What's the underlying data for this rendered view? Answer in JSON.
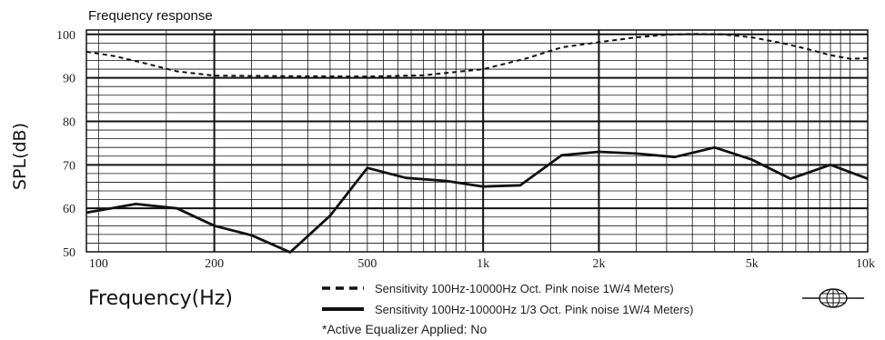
{
  "chart_data": {
    "type": "line",
    "title": "Frequency response",
    "xlabel": "Frequency(Hz)",
    "ylabel": "SPL(dB)",
    "xscale": "log",
    "xlim": [
      93,
      10000
    ],
    "ylim": [
      50,
      101
    ],
    "x_ticks": [
      {
        "value": 100,
        "label": "100"
      },
      {
        "value": 200,
        "label": "200"
      },
      {
        "value": 500,
        "label": "500"
      },
      {
        "value": 1000,
        "label": "1k"
      },
      {
        "value": 2000,
        "label": "2k"
      },
      {
        "value": 5000,
        "label": "5k"
      },
      {
        "value": 10000,
        "label": "10k"
      }
    ],
    "y_ticks": [
      {
        "value": 50,
        "label": "50"
      },
      {
        "value": 60,
        "label": "60"
      },
      {
        "value": 70,
        "label": "70"
      },
      {
        "value": 80,
        "label": "80"
      },
      {
        "value": 90,
        "label": "90"
      },
      {
        "value": 100,
        "label": "100"
      }
    ],
    "grid": true,
    "legend_position": "bottom-center",
    "series": [
      {
        "name": "Sensitivity 100Hz-10000Hz Oct. Pink noise 1W/4 Meters)",
        "style": "dashed",
        "x": [
          93,
          110,
          130,
          160,
          200,
          300,
          500,
          700,
          1000,
          1300,
          1600,
          2000,
          2500,
          3000,
          3500,
          4200,
          5000,
          6000,
          7000,
          8000,
          9000,
          10000
        ],
        "y": [
          96,
          95,
          93.5,
          91.5,
          90.5,
          90.4,
          90.3,
          90.6,
          92,
          94.5,
          97,
          98.2,
          99.3,
          99.9,
          100.1,
          100,
          99.3,
          98,
          96.6,
          95.2,
          94.4,
          94.5
        ]
      },
      {
        "name": "Sensitivity 100Hz-10000Hz 1/3 Oct. Pink noise 1W/4 Meters)",
        "style": "solid",
        "x": [
          93,
          125,
          160,
          200,
          250,
          315,
          400,
          500,
          630,
          800,
          1000,
          1250,
          1600,
          2000,
          2500,
          3150,
          4000,
          5000,
          6300,
          8000,
          10000
        ],
        "y": [
          59,
          61,
          60,
          56,
          53.8,
          49.9,
          58.3,
          69.3,
          67,
          66.3,
          65,
          65.3,
          72.2,
          73,
          72.6,
          71.8,
          74,
          71.2,
          66.8,
          70,
          66.8
        ]
      }
    ],
    "annotations": [
      "*Active Equalizer Applied: No"
    ],
    "colors": {
      "line": "#111111",
      "grid": "#111111",
      "background": "#ffffff"
    }
  },
  "legend": {
    "items": [
      {
        "label": "Sensitivity 100Hz-10000Hz Oct. Pink noise 1W/4 Meters)"
      },
      {
        "label": "Sensitivity 100Hz-10000Hz 1/3 Oct. Pink noise 1W/4 Meters)"
      }
    ]
  },
  "note": "*Active Equalizer Applied: No"
}
